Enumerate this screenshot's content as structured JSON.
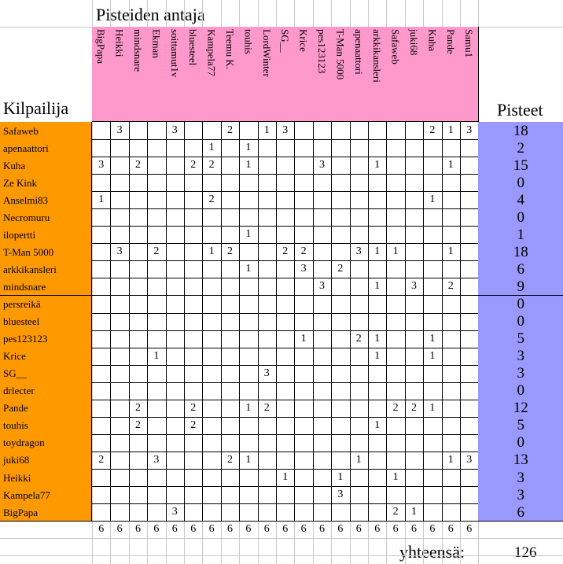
{
  "header": {
    "givers_title": "Pisteiden antaja",
    "competitor_title": "Kilpailija",
    "points_title": "Pisteet"
  },
  "givers": [
    "BigPapa",
    "Heikki",
    "mindsnare",
    "Ekman",
    "soittamut1v",
    "bluesteel",
    "Kampela77",
    "Teemu K.",
    "touhis",
    "LordWinter",
    "SG__",
    "Krice",
    "pes123123",
    "T-Man 5000",
    "apenaattori",
    "arkkikansleri",
    "Safaweb",
    "juki68",
    "Kuha",
    "Pande",
    "Samu1"
  ],
  "rows": [
    {
      "name": "Safaweb",
      "scores": [
        "",
        "3",
        "",
        "",
        "3",
        "",
        "",
        "2",
        "",
        "1",
        "3",
        "",
        "",
        "",
        "",
        "",
        "",
        "",
        "2",
        "1",
        "3"
      ],
      "total": "18"
    },
    {
      "name": "apenaattori",
      "scores": [
        "",
        "",
        "",
        "",
        "",
        "",
        "1",
        "",
        "1",
        "",
        "",
        "",
        "",
        "",
        "",
        "",
        "",
        "",
        "",
        "",
        ""
      ],
      "total": "2"
    },
    {
      "name": "Kuha",
      "scores": [
        "3",
        "",
        "2",
        "",
        "",
        "2",
        "2",
        "",
        "1",
        "",
        "",
        "",
        "3",
        "",
        "",
        "1",
        "",
        "",
        "",
        "1",
        ""
      ],
      "total": "15"
    },
    {
      "name": "Ze Kink",
      "scores": [
        "",
        "",
        "",
        "",
        "",
        "",
        "",
        "",
        "",
        "",
        "",
        "",
        "",
        "",
        "",
        "",
        "",
        "",
        "",
        "",
        ""
      ],
      "total": "0"
    },
    {
      "name": "Anselmi83",
      "scores": [
        "1",
        "",
        "",
        "",
        "",
        "",
        "2",
        "",
        "",
        "",
        "",
        "",
        "",
        "",
        "",
        "",
        "",
        "",
        "1",
        "",
        ""
      ],
      "total": "4"
    },
    {
      "name": "Necromuru",
      "scores": [
        "",
        "",
        "",
        "",
        "",
        "",
        "",
        "",
        "",
        "",
        "",
        "",
        "",
        "",
        "",
        "",
        "",
        "",
        "",
        "",
        ""
      ],
      "total": "0"
    },
    {
      "name": "ilopertti",
      "scores": [
        "",
        "",
        "",
        "",
        "",
        "",
        "",
        "",
        "1",
        "",
        "",
        "",
        "",
        "",
        "",
        "",
        "",
        "",
        "",
        "",
        ""
      ],
      "total": "1"
    },
    {
      "name": "T-Man 5000",
      "scores": [
        "",
        "3",
        "",
        "2",
        "",
        "",
        "1",
        "2",
        "",
        "",
        "2",
        "2",
        "",
        "",
        "3",
        "1",
        "1",
        "",
        "",
        "1",
        ""
      ],
      "total": "18"
    },
    {
      "name": "arkkikansleri",
      "scores": [
        "",
        "",
        "",
        "",
        "",
        "",
        "",
        "",
        "1",
        "",
        "",
        "3",
        "",
        "2",
        "",
        "",
        "",
        "",
        "",
        "",
        ""
      ],
      "total": "6"
    },
    {
      "name": "mindsnare",
      "scores": [
        "",
        "",
        "",
        "",
        "",
        "",
        "",
        "",
        "",
        "",
        "",
        "",
        "3",
        "",
        "",
        "1",
        "",
        "3",
        "",
        "2",
        ""
      ],
      "total": "9"
    },
    {
      "name": "persreikä",
      "scores": [
        "",
        "",
        "",
        "",
        "",
        "",
        "",
        "",
        "",
        "",
        "",
        "",
        "",
        "",
        "",
        "",
        "",
        "",
        "",
        "",
        ""
      ],
      "total": "0"
    },
    {
      "name": "bluesteel",
      "scores": [
        "",
        "",
        "",
        "",
        "",
        "",
        "",
        "",
        "",
        "",
        "",
        "",
        "",
        "",
        "",
        "",
        "",
        "",
        "",
        "",
        ""
      ],
      "total": "0"
    },
    {
      "name": "pes123123",
      "scores": [
        "",
        "",
        "",
        "",
        "",
        "",
        "",
        "",
        "",
        "",
        "",
        "1",
        "",
        "",
        "2",
        "1",
        "",
        "",
        "1",
        "",
        ""
      ],
      "total": "5"
    },
    {
      "name": "Krice",
      "scores": [
        "",
        "",
        "",
        "1",
        "",
        "",
        "",
        "",
        "",
        "",
        "",
        "",
        "",
        "",
        "",
        "1",
        "",
        "",
        "1",
        "",
        ""
      ],
      "total": "3"
    },
    {
      "name": "SG__",
      "scores": [
        "",
        "",
        "",
        "",
        "",
        "",
        "",
        "",
        "",
        "3",
        "",
        "",
        "",
        "",
        "",
        "",
        "",
        "",
        "",
        "",
        ""
      ],
      "total": "3"
    },
    {
      "name": "drlecter",
      "scores": [
        "",
        "",
        "",
        "",
        "",
        "",
        "",
        "",
        "",
        "",
        "",
        "",
        "",
        "",
        "",
        "",
        "",
        "",
        "",
        "",
        ""
      ],
      "total": "0"
    },
    {
      "name": "Pande",
      "scores": [
        "",
        "",
        "2",
        "",
        "",
        "2",
        "",
        "",
        "1",
        "2",
        "",
        "",
        "",
        "",
        "",
        "",
        "2",
        "2",
        "1",
        "",
        ""
      ],
      "total": "12"
    },
    {
      "name": "touhis",
      "scores": [
        "",
        "",
        "2",
        "",
        "",
        "2",
        "",
        "",
        "",
        "",
        "",
        "",
        "",
        "",
        "",
        "1",
        "",
        "",
        "",
        "",
        ""
      ],
      "total": "5"
    },
    {
      "name": "toydragon",
      "scores": [
        "",
        "",
        "",
        "",
        "",
        "",
        "",
        "",
        "",
        "",
        "",
        "",
        "",
        "",
        "",
        "",
        "",
        "",
        "",
        "",
        ""
      ],
      "total": "0"
    },
    {
      "name": "juki68",
      "scores": [
        "2",
        "",
        "",
        "3",
        "",
        "",
        "",
        "2",
        "1",
        "",
        "",
        "",
        "",
        "",
        "1",
        "",
        "",
        "",
        "",
        "1",
        "3"
      ],
      "total": "13"
    },
    {
      "name": "Heikki",
      "scores": [
        "",
        "",
        "",
        "",
        "",
        "",
        "",
        "",
        "",
        "",
        "1",
        "",
        "",
        "1",
        "",
        "",
        "1",
        "",
        "",
        "",
        ""
      ],
      "total": "3"
    },
    {
      "name": "Kampela77",
      "scores": [
        "",
        "",
        "",
        "",
        "",
        "",
        "",
        "",
        "",
        "",
        "",
        "",
        "",
        "3",
        "",
        "",
        "",
        "",
        "",
        "",
        ""
      ],
      "total": "3"
    },
    {
      "name": "BigPapa",
      "scores": [
        "",
        "",
        "",
        "",
        "3",
        "",
        "",
        "",
        "",
        "",
        "",
        "",
        "",
        "",
        "",
        "",
        "2",
        "1",
        "",
        "",
        ""
      ],
      "total": "6"
    }
  ],
  "column_sums": [
    "6",
    "6",
    "6",
    "6",
    "6",
    "6",
    "6",
    "6",
    "6",
    "6",
    "6",
    "6",
    "6",
    "6",
    "6",
    "6",
    "6",
    "6",
    "6",
    "6",
    "6"
  ],
  "footer": {
    "total_label": "yhteensä:",
    "grand_total": "126"
  },
  "colors": {
    "competitor_fill": "#ff9900",
    "giver_fill": "#ff99cc",
    "total_fill": "#9999ff"
  }
}
